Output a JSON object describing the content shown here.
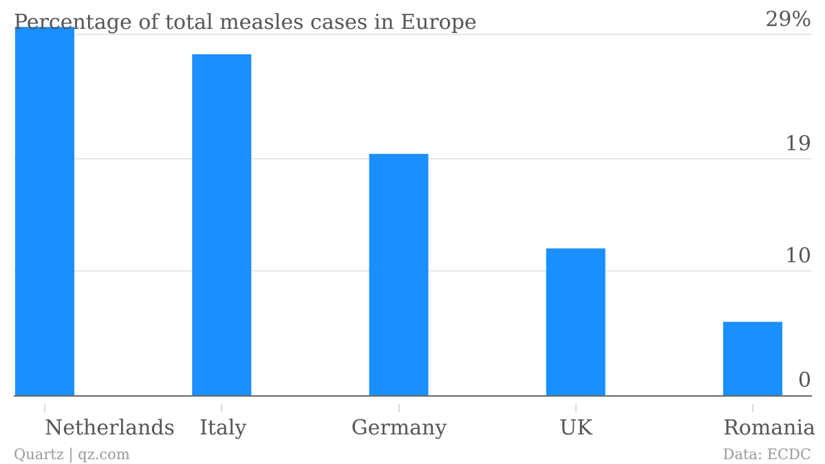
{
  "chart_data": {
    "type": "bar",
    "title": "Percentage of total measles cases in Europe",
    "categories": [
      "Netherlands",
      "Italy",
      "Germany",
      "UK",
      "Romania"
    ],
    "series": [
      {
        "values": [
          29.6,
          27.4,
          19.4,
          11.8,
          5.9
        ]
      }
    ],
    "ylim": [
      0,
      29
    ],
    "yticks": [
      0,
      10,
      19,
      29
    ],
    "ytick_labels": [
      "0",
      "10",
      "19",
      "29%"
    ],
    "grid": true,
    "bar_color": "#1a8fff",
    "gridline_color": "#dddddd",
    "axis_color": "#666666"
  },
  "footer": {
    "source_left": "Quartz | qz.com",
    "source_right": "Data: ECDC"
  }
}
